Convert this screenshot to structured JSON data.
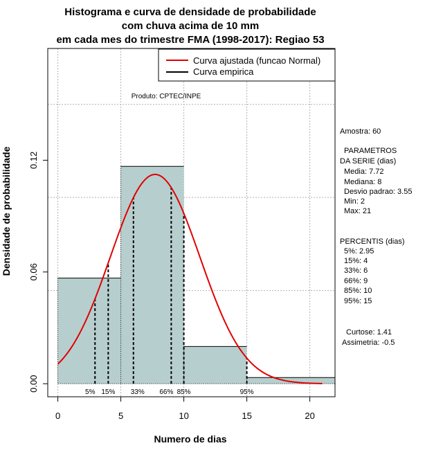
{
  "chart_data": {
    "type": "bar",
    "title": [
      "Histograma e curva de densidade de probabilidade",
      "com chuva acima de 10 mm",
      "em cada mes do trimestre FMA (1998-2017): Regiao 53"
    ],
    "xlabel": "Numero de dias",
    "ylabel": "Densidade de probabilidade",
    "xlim": [
      -0.8,
      22
    ],
    "ylim": [
      -0.007,
      0.18
    ],
    "xticks": [
      0,
      5,
      10,
      15,
      20
    ],
    "yticks": [
      0.0,
      0.06,
      0.12
    ],
    "ytick_labels": [
      "0.00",
      "0.06",
      "0.12"
    ],
    "grid": true,
    "bins": [
      {
        "start": 0,
        "end": 5,
        "density": 0.0567
      },
      {
        "start": 5,
        "end": 10,
        "density": 0.1167
      },
      {
        "start": 10,
        "end": 15,
        "density": 0.02
      },
      {
        "start": 15,
        "end": 22,
        "density": 0.0033
      }
    ],
    "bar_color": "#b7cece",
    "normal_curve": {
      "mean": 7.72,
      "sd": 3.55,
      "x_range": [
        0,
        21
      ],
      "color": "#e00000"
    },
    "percentiles": [
      {
        "label": "5%",
        "value": 2.95
      },
      {
        "label": "15%",
        "value": 4
      },
      {
        "label": "33%",
        "value": 6
      },
      {
        "label": "66%",
        "value": 9
      },
      {
        "label": "85%",
        "value": 10
      },
      {
        "label": "95%",
        "value": 15
      }
    ],
    "legend": {
      "position": "top-right",
      "entries": [
        {
          "label": "Curva ajustada (funcao Normal)",
          "color": "#e00000"
        },
        {
          "label": "Curva empirica",
          "color": "#000000"
        }
      ]
    },
    "annotation": "Produto: CPTEC/INPE"
  },
  "stats_panel": {
    "amostra": "Amostra: 60",
    "param_title_1": "PARAMETROS",
    "param_title_2": "DA SERIE (dias)",
    "media": "Media: 7.72",
    "mediana": "Mediana: 8",
    "desvio": "Desvio padrao: 3.55",
    "min": "Min: 2",
    "max": "Max: 21",
    "perc_title": "PERCENTIS (dias)",
    "p5": "5%: 2.95",
    "p15": "15%: 4",
    "p33": "33%: 6",
    "p66": "66%: 9",
    "p85": "85%: 10",
    "p95": "95%: 15",
    "curtose": "Curtose: 1.41",
    "assimetria": "Assimetria: -0.5"
  }
}
